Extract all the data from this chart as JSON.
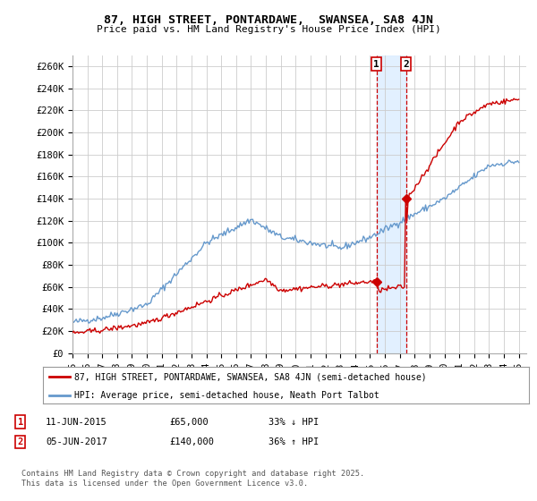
{
  "title": "87, HIGH STREET, PONTARDAWE,  SWANSEA, SA8 4JN",
  "subtitle": "Price paid vs. HM Land Registry's House Price Index (HPI)",
  "ylabel_ticks": [
    "£0",
    "£20K",
    "£40K",
    "£60K",
    "£80K",
    "£100K",
    "£120K",
    "£140K",
    "£160K",
    "£180K",
    "£200K",
    "£220K",
    "£240K",
    "£260K"
  ],
  "ytick_values": [
    0,
    20000,
    40000,
    60000,
    80000,
    100000,
    120000,
    140000,
    160000,
    180000,
    200000,
    220000,
    240000,
    260000
  ],
  "ylim": [
    0,
    270000
  ],
  "x_start_year": 1995,
  "x_end_year": 2025,
  "red_line_label": "87, HIGH STREET, PONTARDAWE, SWANSEA, SA8 4JN (semi-detached house)",
  "blue_line_label": "HPI: Average price, semi-detached house, Neath Port Talbot",
  "transaction1_date": "11-JUN-2015",
  "transaction1_price": 65000,
  "transaction1_pct": "33% ↓ HPI",
  "transaction2_date": "05-JUN-2017",
  "transaction2_price": 140000,
  "transaction2_pct": "36% ↑ HPI",
  "copyright_text": "Contains HM Land Registry data © Crown copyright and database right 2025.\nThis data is licensed under the Open Government Licence v3.0.",
  "background_color": "#ffffff",
  "plot_bg_color": "#ffffff",
  "grid_color": "#cccccc",
  "red_color": "#cc0000",
  "blue_color": "#6699cc",
  "highlight_color": "#ddeeff",
  "marker1_year": 2015.44,
  "marker2_year": 2017.42
}
